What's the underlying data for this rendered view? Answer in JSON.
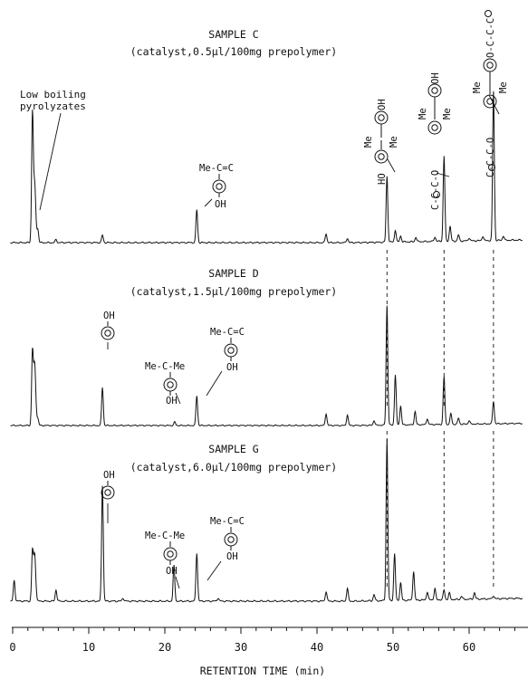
{
  "chart_data": {
    "type": "line",
    "xlabel": "RETENTION TIME (min)",
    "ylabel": "",
    "xlim": [
      0,
      67
    ],
    "x_ticks": [
      0,
      10,
      20,
      30,
      40,
      50,
      60
    ],
    "grid": false,
    "aligned_peaks_min": [
      49.2,
      56.7,
      63.2
    ],
    "panels": [
      {
        "name": "SAMPLE C",
        "title": "SAMPLE C",
        "subtitle": "(catalyst,0.5µl/100mg prepolymer)",
        "peaks": [
          {
            "x": 2.6,
            "y": 0.87
          },
          {
            "x": 2.85,
            "y": 0.3
          },
          {
            "x": 3.0,
            "y": 0.17
          },
          {
            "x": 3.3,
            "y": 0.09
          },
          {
            "x": 5.7,
            "y": 0.02
          },
          {
            "x": 11.8,
            "y": 0.05
          },
          {
            "x": 24.2,
            "y": 0.22
          },
          {
            "x": 41.2,
            "y": 0.06
          },
          {
            "x": 44.0,
            "y": 0.03
          },
          {
            "x": 49.2,
            "y": 0.44
          },
          {
            "x": 50.3,
            "y": 0.08
          },
          {
            "x": 51.0,
            "y": 0.04
          },
          {
            "x": 53.0,
            "y": 0.03
          },
          {
            "x": 55.5,
            "y": 0.03
          },
          {
            "x": 56.7,
            "y": 0.57
          },
          {
            "x": 57.5,
            "y": 0.1
          },
          {
            "x": 58.6,
            "y": 0.04
          },
          {
            "x": 60.0,
            "y": 0.02
          },
          {
            "x": 61.8,
            "y": 0.03
          },
          {
            "x": 63.2,
            "y": 1.0
          },
          {
            "x": 64.5,
            "y": 0.03
          }
        ]
      },
      {
        "name": "SAMPLE D",
        "title": "SAMPLE D",
        "subtitle": "(catalyst,1.5µl/100mg prepolymer)",
        "peaks": [
          {
            "x": 2.6,
            "y": 0.62
          },
          {
            "x": 2.85,
            "y": 0.4
          },
          {
            "x": 3.0,
            "y": 0.22
          },
          {
            "x": 3.3,
            "y": 0.06
          },
          {
            "x": 11.8,
            "y": 0.32
          },
          {
            "x": 21.3,
            "y": 0.03
          },
          {
            "x": 24.2,
            "y": 0.25
          },
          {
            "x": 41.2,
            "y": 0.1
          },
          {
            "x": 44.0,
            "y": 0.09
          },
          {
            "x": 47.5,
            "y": 0.04
          },
          {
            "x": 49.2,
            "y": 1.0
          },
          {
            "x": 50.3,
            "y": 0.42
          },
          {
            "x": 51.0,
            "y": 0.16
          },
          {
            "x": 52.9,
            "y": 0.11
          },
          {
            "x": 54.5,
            "y": 0.05
          },
          {
            "x": 56.7,
            "y": 0.4
          },
          {
            "x": 57.6,
            "y": 0.09
          },
          {
            "x": 58.6,
            "y": 0.05
          },
          {
            "x": 60.0,
            "y": 0.03
          },
          {
            "x": 63.2,
            "y": 0.19
          }
        ]
      },
      {
        "name": "SAMPLE G",
        "title": "SAMPLE G",
        "subtitle": "(catalyst,6.0µl/100mg prepolymer)",
        "peaks": [
          {
            "x": 0.2,
            "y": 0.13
          },
          {
            "x": 2.6,
            "y": 0.31
          },
          {
            "x": 2.85,
            "y": 0.23
          },
          {
            "x": 3.0,
            "y": 0.12
          },
          {
            "x": 5.7,
            "y": 0.07
          },
          {
            "x": 11.8,
            "y": 0.72
          },
          {
            "x": 14.5,
            "y": 0.02
          },
          {
            "x": 21.2,
            "y": 0.22
          },
          {
            "x": 24.2,
            "y": 0.3
          },
          {
            "x": 27.0,
            "y": 0.02
          },
          {
            "x": 41.2,
            "y": 0.06
          },
          {
            "x": 44.0,
            "y": 0.08
          },
          {
            "x": 47.5,
            "y": 0.04
          },
          {
            "x": 49.2,
            "y": 1.0
          },
          {
            "x": 50.2,
            "y": 0.29
          },
          {
            "x": 51.0,
            "y": 0.11
          },
          {
            "x": 52.7,
            "y": 0.18
          },
          {
            "x": 54.5,
            "y": 0.05
          },
          {
            "x": 55.5,
            "y": 0.07
          },
          {
            "x": 56.7,
            "y": 0.06
          },
          {
            "x": 57.4,
            "y": 0.04
          },
          {
            "x": 59.0,
            "y": 0.02
          },
          {
            "x": 60.7,
            "y": 0.04
          },
          {
            "x": 63.2,
            "y": 0.02
          }
        ]
      }
    ]
  },
  "annotations": {
    "low_boiling": [
      "Low boiling",
      "pyrolyzates"
    ],
    "me": "Me",
    "oh": "OH",
    "ho": "HO",
    "me_c_c": "Me-C=C",
    "me_c_me": "Me-C-Me",
    "c_c_c_o": "C-C-C-O",
    "o_c_c_c": "O-C-C-C",
    "c": "C",
    "o": "O"
  }
}
